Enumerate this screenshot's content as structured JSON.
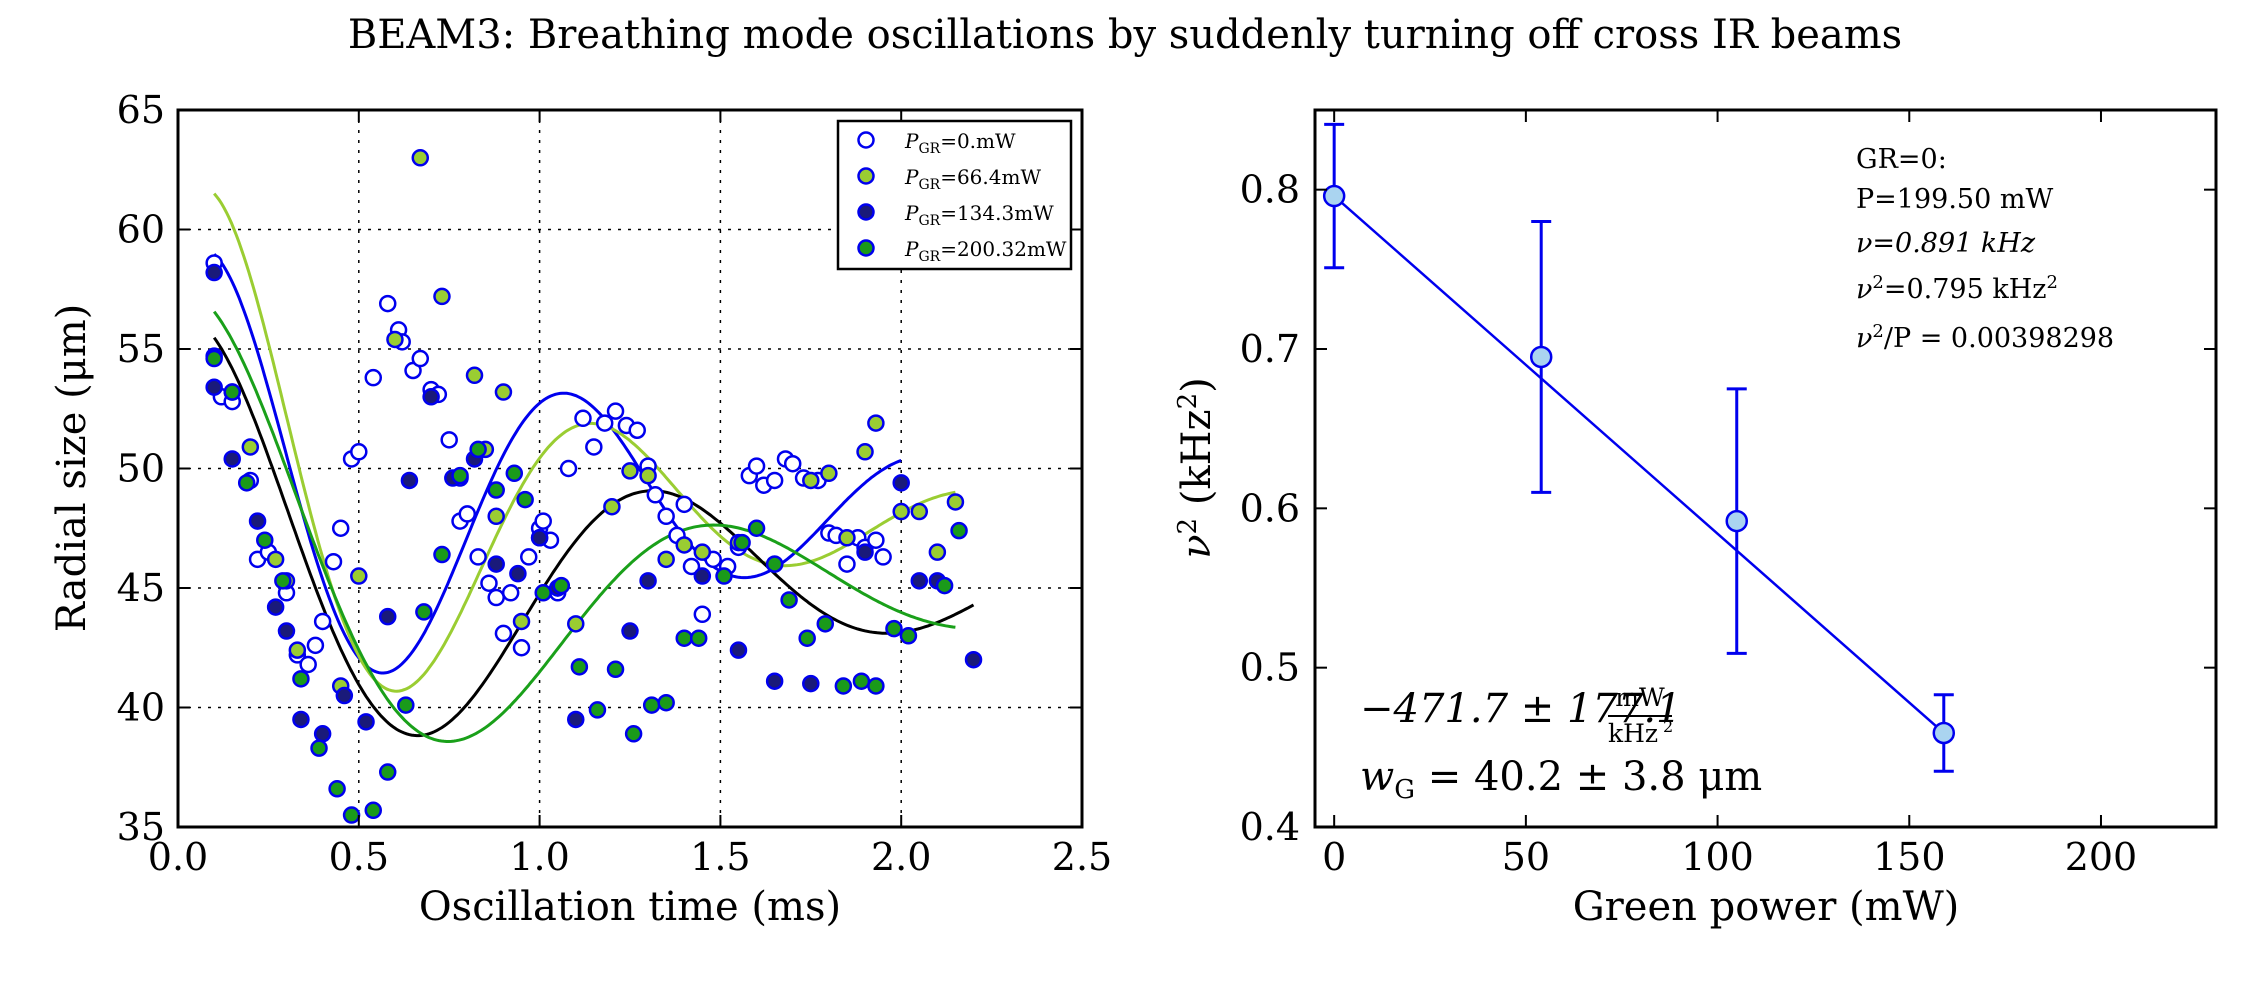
{
  "figure": {
    "title": "BEAM3: Breathing mode oscillations by suddenly turning off cross IR beams"
  },
  "colors": {
    "blue": "#0000ee",
    "olive": "#9acd32",
    "navy": "#1a1a7a",
    "green": "#1a9a1a",
    "fit_black": "#000000",
    "fit_green": "#1aa01a",
    "light_blue": "#aad4f0"
  },
  "chart_data": [
    {
      "type": "scatter",
      "title": "",
      "xlabel": "Oscillation time (ms)",
      "ylabel": "Radial size (μm)",
      "xlim": [
        0.0,
        2.5
      ],
      "ylim": [
        35,
        65
      ],
      "xticks": [
        0.0,
        0.5,
        1.0,
        1.5,
        2.0,
        2.5
      ],
      "xtick_labels": [
        "0.0",
        "0.5",
        "1.0",
        "1.5",
        "2.0",
        "2.5"
      ],
      "yticks": [
        35,
        40,
        45,
        50,
        55,
        60,
        65
      ],
      "ytick_labels": [
        "35",
        "40",
        "45",
        "50",
        "55",
        "60",
        "65"
      ],
      "grid": true,
      "legend_position": "top-right",
      "series": [
        {
          "name": "P_GR = 0.mW",
          "legend_label": {
            "sym": "P",
            "sub": "GR",
            "val": "=0.mW"
          },
          "marker_face": "#ffffff",
          "marker_edge": "#0000ee",
          "points": [
            [
              0.1,
              58.6
            ],
            [
              0.12,
              53.0
            ],
            [
              0.15,
              52.8
            ],
            [
              0.2,
              49.5
            ],
            [
              0.22,
              46.2
            ],
            [
              0.25,
              46.5
            ],
            [
              0.3,
              44.8
            ],
            [
              0.33,
              42.2
            ],
            [
              0.36,
              41.8
            ],
            [
              0.38,
              42.6
            ],
            [
              0.4,
              43.6
            ],
            [
              0.43,
              46.1
            ],
            [
              0.45,
              47.5
            ],
            [
              0.48,
              50.4
            ],
            [
              0.5,
              50.7
            ],
            [
              0.54,
              53.8
            ],
            [
              0.58,
              56.9
            ],
            [
              0.61,
              55.8
            ],
            [
              0.62,
              55.3
            ],
            [
              0.65,
              54.1
            ],
            [
              0.67,
              54.6
            ],
            [
              0.7,
              53.3
            ],
            [
              0.72,
              53.1
            ],
            [
              0.75,
              51.2
            ],
            [
              0.78,
              47.8
            ],
            [
              0.8,
              48.1
            ],
            [
              0.83,
              46.3
            ],
            [
              0.86,
              45.2
            ],
            [
              0.88,
              44.6
            ],
            [
              0.9,
              43.1
            ],
            [
              0.92,
              44.8
            ],
            [
              0.95,
              42.5
            ],
            [
              0.97,
              46.3
            ],
            [
              1.0,
              47.5
            ],
            [
              1.01,
              47.8
            ],
            [
              1.03,
              47.0
            ],
            [
              1.05,
              44.8
            ],
            [
              1.08,
              50.0
            ],
            [
              1.12,
              52.1
            ],
            [
              1.15,
              50.9
            ],
            [
              1.18,
              51.9
            ],
            [
              1.21,
              52.4
            ],
            [
              1.24,
              51.8
            ],
            [
              1.27,
              51.6
            ],
            [
              1.3,
              50.1
            ],
            [
              1.32,
              48.9
            ],
            [
              1.35,
              48.0
            ],
            [
              1.38,
              47.2
            ],
            [
              1.4,
              48.5
            ],
            [
              1.42,
              45.9
            ],
            [
              1.45,
              43.9
            ],
            [
              1.48,
              46.2
            ],
            [
              1.52,
              45.9
            ],
            [
              1.55,
              46.7
            ],
            [
              1.58,
              49.7
            ],
            [
              1.6,
              50.1
            ],
            [
              1.62,
              49.3
            ],
            [
              1.65,
              49.5
            ],
            [
              1.68,
              50.4
            ],
            [
              1.7,
              50.2
            ],
            [
              1.73,
              49.6
            ],
            [
              1.77,
              49.5
            ],
            [
              1.8,
              47.3
            ],
            [
              1.82,
              47.2
            ],
            [
              1.85,
              46.0
            ],
            [
              1.88,
              47.1
            ],
            [
              1.9,
              46.7
            ],
            [
              1.93,
              47.0
            ],
            [
              1.95,
              46.3
            ]
          ]
        },
        {
          "name": "P_GR = 66.4mW",
          "legend_label": {
            "sym": "P",
            "sub": "GR",
            "val": "=66.4mW"
          },
          "marker_face": "#9acd32",
          "marker_edge": "#0000ee",
          "points": [
            [
              0.1,
              54.7
            ],
            [
              0.15,
              53.2
            ],
            [
              0.2,
              50.9
            ],
            [
              0.27,
              46.2
            ],
            [
              0.3,
              45.3
            ],
            [
              0.33,
              42.4
            ],
            [
              0.45,
              40.9
            ],
            [
              0.5,
              45.5
            ],
            [
              0.6,
              55.4
            ],
            [
              0.67,
              63.0
            ],
            [
              0.73,
              57.2
            ],
            [
              0.78,
              49.6
            ],
            [
              0.82,
              53.9
            ],
            [
              0.85,
              50.8
            ],
            [
              0.88,
              48.0
            ],
            [
              0.9,
              53.2
            ],
            [
              0.95,
              43.6
            ],
            [
              1.0,
              47.1
            ],
            [
              1.05,
              45.0
            ],
            [
              1.1,
              43.5
            ],
            [
              1.2,
              48.4
            ],
            [
              1.25,
              49.9
            ],
            [
              1.3,
              49.7
            ],
            [
              1.35,
              46.2
            ],
            [
              1.4,
              46.8
            ],
            [
              1.45,
              46.5
            ],
            [
              1.55,
              46.9
            ],
            [
              1.65,
              46.0
            ],
            [
              1.75,
              49.5
            ],
            [
              1.8,
              49.8
            ],
            [
              1.85,
              47.1
            ],
            [
              1.9,
              50.7
            ],
            [
              1.93,
              51.9
            ],
            [
              2.0,
              48.2
            ],
            [
              2.05,
              48.2
            ],
            [
              2.1,
              46.5
            ],
            [
              2.15,
              48.6
            ]
          ]
        },
        {
          "name": "P_GR = 134.3mW",
          "legend_label": {
            "sym": "P",
            "sub": "GR",
            "val": "=134.3mW"
          },
          "marker_face": "#1a1a7a",
          "marker_edge": "#0000ee",
          "points": [
            [
              0.1,
              53.4
            ],
            [
              0.1,
              58.2
            ],
            [
              0.15,
              50.4
            ],
            [
              0.22,
              47.8
            ],
            [
              0.27,
              44.2
            ],
            [
              0.3,
              43.2
            ],
            [
              0.34,
              39.5
            ],
            [
              0.4,
              38.9
            ],
            [
              0.46,
              40.5
            ],
            [
              0.52,
              39.4
            ],
            [
              0.58,
              43.8
            ],
            [
              0.64,
              49.5
            ],
            [
              0.7,
              53.0
            ],
            [
              0.76,
              49.6
            ],
            [
              0.82,
              50.4
            ],
            [
              0.88,
              46.0
            ],
            [
              0.94,
              45.6
            ],
            [
              1.0,
              47.1
            ],
            [
              1.05,
              45.0
            ],
            [
              1.1,
              39.5
            ],
            [
              1.25,
              43.2
            ],
            [
              1.3,
              45.3
            ],
            [
              1.45,
              45.5
            ],
            [
              1.55,
              42.4
            ],
            [
              1.65,
              41.1
            ],
            [
              1.75,
              41.0
            ],
            [
              1.9,
              46.5
            ],
            [
              2.0,
              49.4
            ],
            [
              2.05,
              45.3
            ],
            [
              2.1,
              45.3
            ],
            [
              2.2,
              42.0
            ]
          ]
        },
        {
          "name": "P_GR = 200.32mW",
          "legend_label": {
            "sym": "P",
            "sub": "GR",
            "val": "=200.32mW"
          },
          "marker_face": "#1a9a1a",
          "marker_edge": "#0000ee",
          "points": [
            [
              0.1,
              54.6
            ],
            [
              0.15,
              53.2
            ],
            [
              0.19,
              49.4
            ],
            [
              0.24,
              47.0
            ],
            [
              0.29,
              45.3
            ],
            [
              0.34,
              41.2
            ],
            [
              0.39,
              38.3
            ],
            [
              0.44,
              36.6
            ],
            [
              0.48,
              35.5
            ],
            [
              0.54,
              35.7
            ],
            [
              0.58,
              37.3
            ],
            [
              0.63,
              40.1
            ],
            [
              0.68,
              44.0
            ],
            [
              0.73,
              46.4
            ],
            [
              0.78,
              49.7
            ],
            [
              0.83,
              50.8
            ],
            [
              0.88,
              49.1
            ],
            [
              0.93,
              49.8
            ],
            [
              0.96,
              48.7
            ],
            [
              1.01,
              44.8
            ],
            [
              1.06,
              45.1
            ],
            [
              1.11,
              41.7
            ],
            [
              1.16,
              39.9
            ],
            [
              1.21,
              41.6
            ],
            [
              1.26,
              38.9
            ],
            [
              1.31,
              40.1
            ],
            [
              1.35,
              40.2
            ],
            [
              1.4,
              42.9
            ],
            [
              1.44,
              42.9
            ],
            [
              1.51,
              45.5
            ],
            [
              1.56,
              46.9
            ],
            [
              1.6,
              47.5
            ],
            [
              1.65,
              46.0
            ],
            [
              1.69,
              44.5
            ],
            [
              1.74,
              42.9
            ],
            [
              1.79,
              43.5
            ],
            [
              1.84,
              40.9
            ],
            [
              1.89,
              41.1
            ],
            [
              1.93,
              40.9
            ],
            [
              1.98,
              43.3
            ],
            [
              2.02,
              43.0
            ],
            [
              2.12,
              45.1
            ],
            [
              2.16,
              47.4
            ]
          ]
        }
      ],
      "fits": [
        {
          "name": "fit P_GR=0.mW",
          "color": "#0000ee",
          "offset": 48.5,
          "amp0": 10.5,
          "tau": 1.2,
          "f": 1.0,
          "phi": 0.08,
          "t0": 0.1,
          "t1": 2.0
        },
        {
          "name": "fit P_GR=66.4mW",
          "color": "#9acd32",
          "offset": 48.0,
          "amp0": 13.5,
          "tau": 0.85,
          "f": 0.93,
          "phi": 0.0,
          "t0": 0.1,
          "t1": 2.15
        },
        {
          "name": "fit P_GR=134.3mW",
          "color": "#000000",
          "offset": 45.3,
          "amp0": 10.5,
          "tau": 1.2,
          "f": 0.77,
          "phi": 0.25,
          "t0": 0.1,
          "t1": 2.2
        },
        {
          "name": "fit P_GR=200.32mW",
          "color": "#1aa01a",
          "offset": 44.7,
          "amp0": 12.0,
          "tau": 1.0,
          "f": 0.68,
          "phi": 0.15,
          "t0": 0.1,
          "t1": 2.15
        }
      ]
    },
    {
      "type": "scatter",
      "title": "",
      "xlabel": "Green power (mW)",
      "ylabel": "ν² (kHz²)",
      "xlim": [
        -5,
        230
      ],
      "ylim": [
        0.4,
        0.85
      ],
      "xticks": [
        0,
        50,
        100,
        150,
        200
      ],
      "xtick_labels": [
        "0",
        "50",
        "100",
        "150",
        "200"
      ],
      "yticks": [
        0.4,
        0.5,
        0.6,
        0.7,
        0.8
      ],
      "ytick_labels": [
        "0.4",
        "0.5",
        "0.6",
        "0.7",
        "0.8"
      ],
      "grid": false,
      "points": [
        {
          "x": 0,
          "y": 0.796,
          "err": 0.045
        },
        {
          "x": 54,
          "y": 0.695,
          "err": 0.085
        },
        {
          "x": 105,
          "y": 0.592,
          "err": 0.083
        },
        {
          "x": 159,
          "y": 0.459,
          "err": 0.024
        }
      ],
      "fit_line": {
        "x": [
          0,
          159
        ],
        "y": [
          0.796,
          0.459
        ],
        "color": "#0000ee"
      },
      "info_box": {
        "line1": "GR=0:",
        "line2": "P=199.50 mW",
        "line3": "ν=0.891 kHz",
        "line4_pre": "ν",
        "line4_post": "=0.795 kHz",
        "line5_pre": "ν",
        "line5_post": "/P = 0.00398298"
      },
      "annotation": {
        "slope_text": "−471.7 ± 177.1",
        "slope_unit_num": "mW",
        "slope_unit_den": "kHz",
        "waist_sym": "w",
        "waist_sub": "G",
        "waist_text": " = 40.2 ± 3.8 μm"
      }
    }
  ]
}
